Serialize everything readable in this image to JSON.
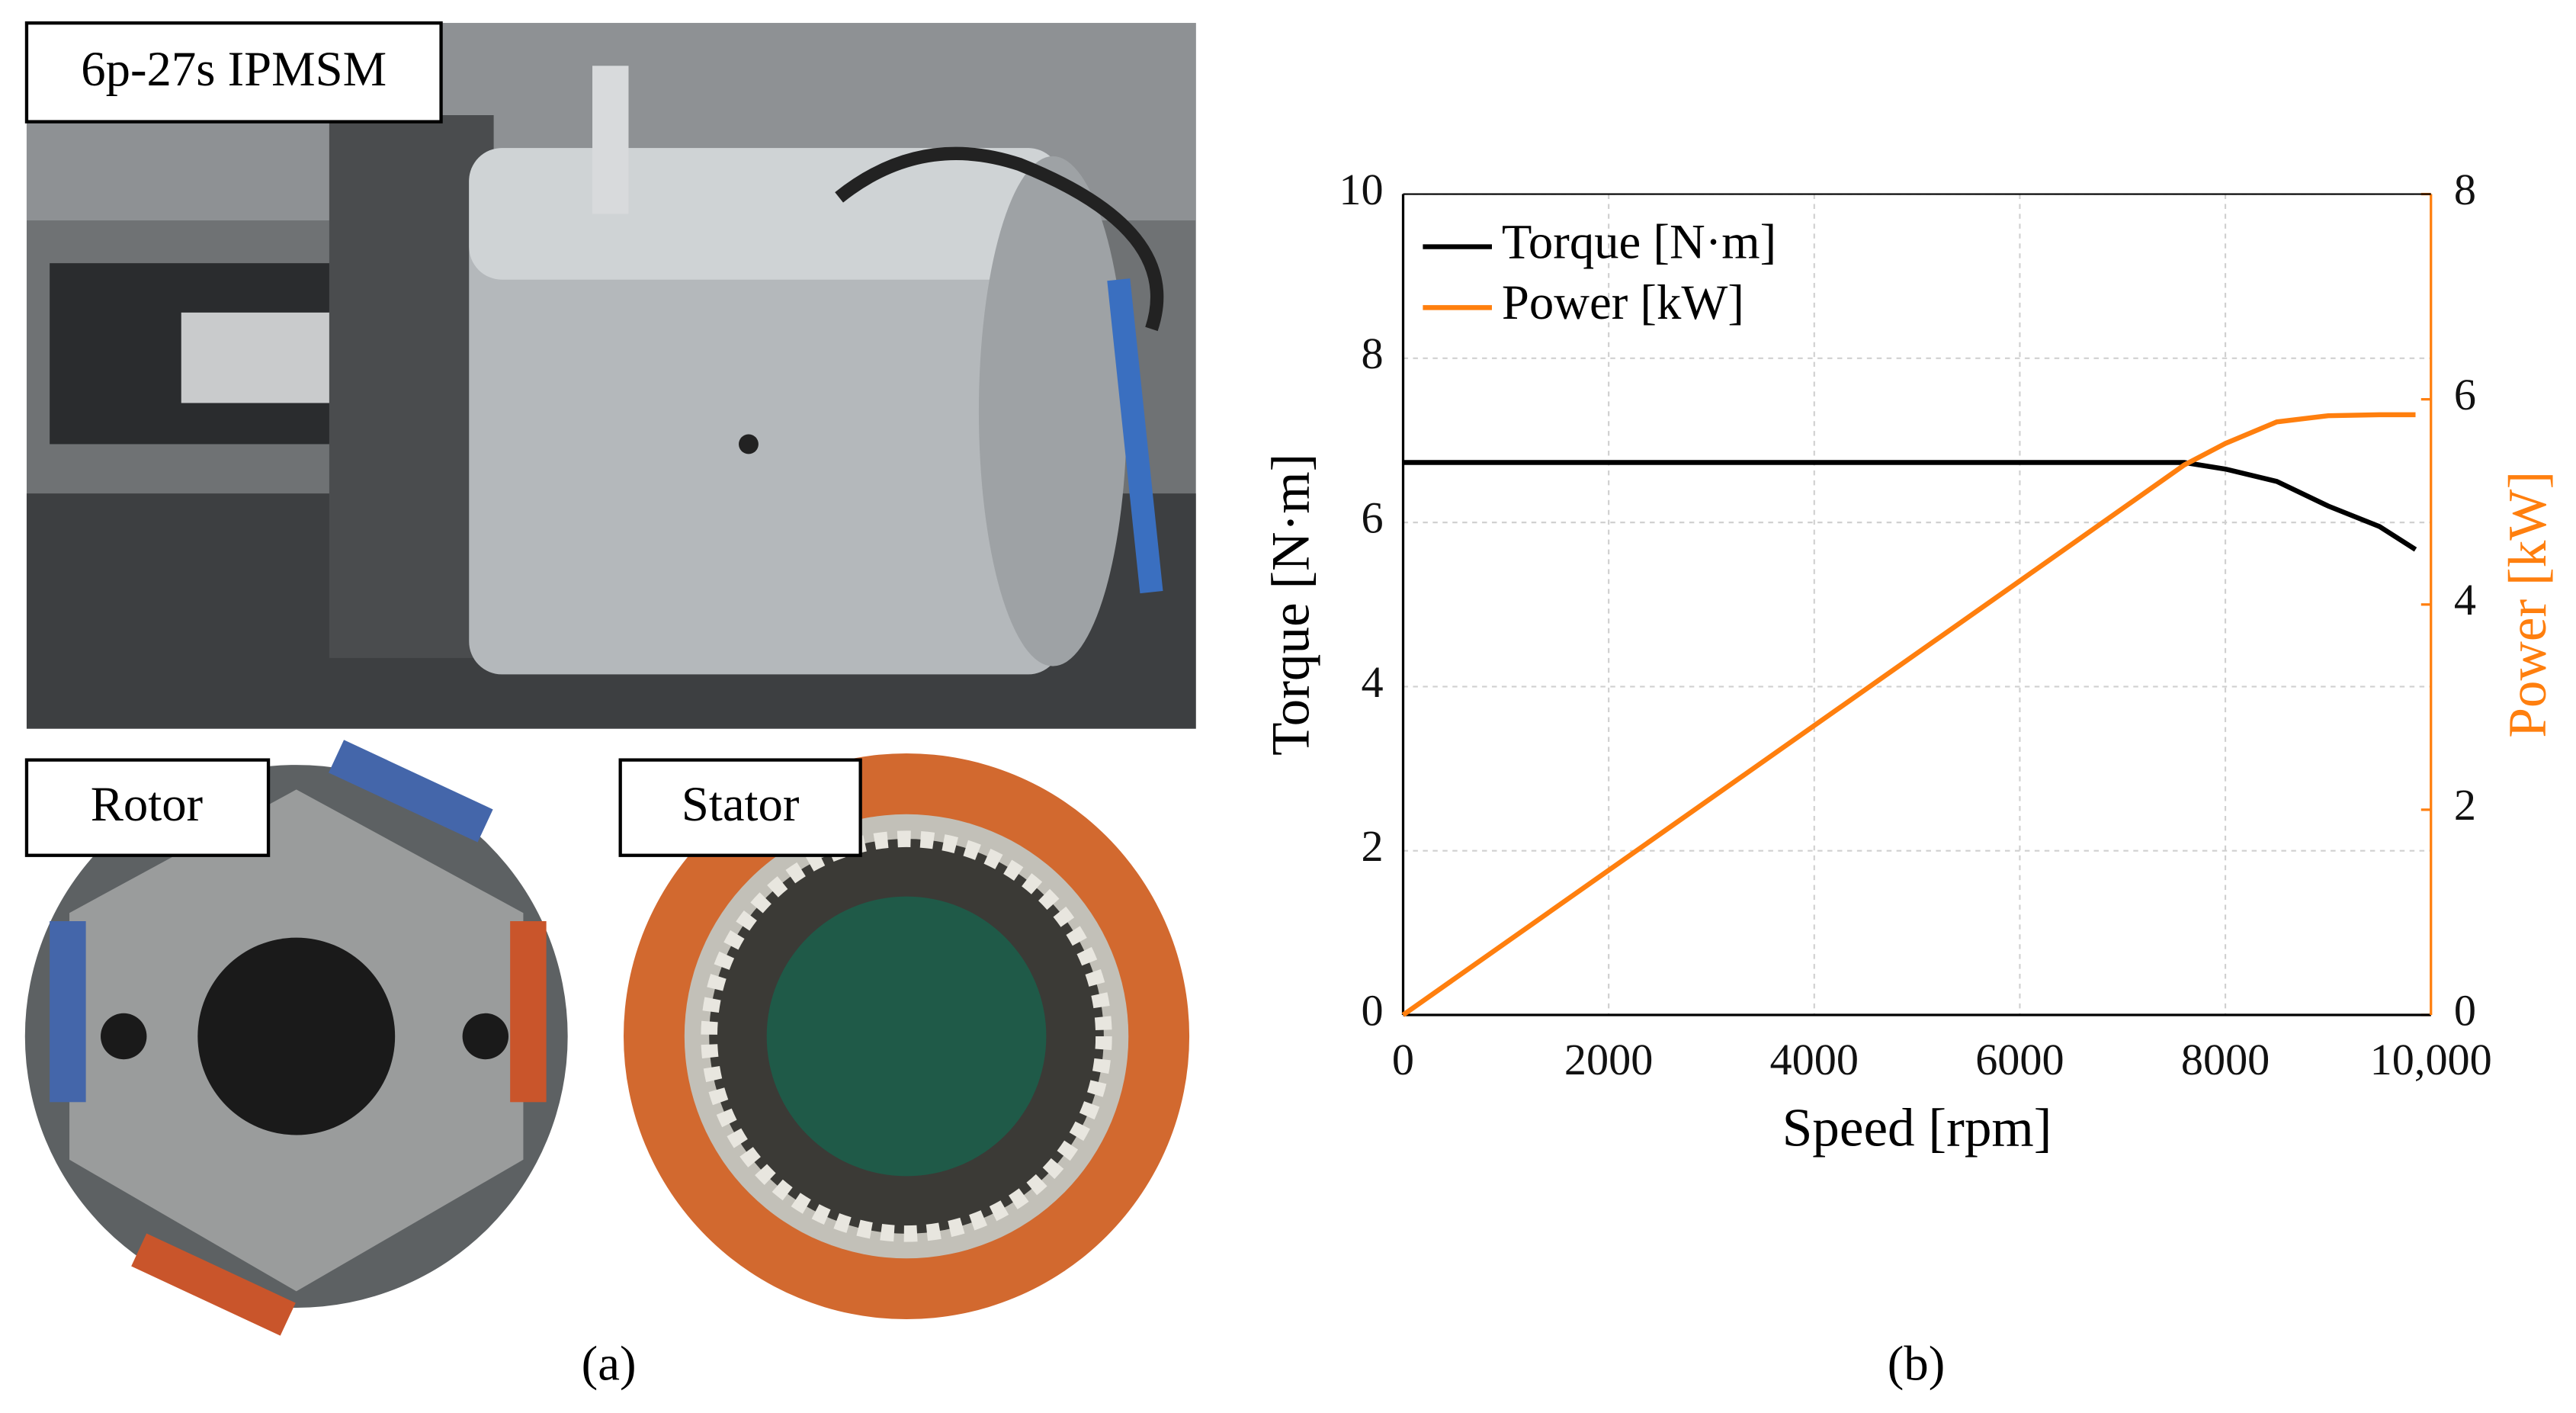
{
  "photo": {
    "main_label": "6p-27s IPMSM",
    "rotor_label": "Rotor",
    "stator_label": "Stator",
    "caption": "(a)"
  },
  "chart_data": {
    "type": "line",
    "caption": "(b)",
    "x_label": "Speed [rpm]",
    "y_label": "Torque [N·m]",
    "y2_label": "Power [kW]",
    "x": [
      0,
      2000,
      4000,
      6000,
      7600,
      8000,
      8500,
      9000,
      9500,
      9850
    ],
    "series": [
      {
        "name": "Torque [N·m]",
        "color": "#000000",
        "values": [
          6.73,
          6.73,
          6.73,
          6.73,
          6.73,
          6.65,
          6.5,
          6.2,
          5.95,
          5.67
        ]
      },
      {
        "name": "Power [kW]",
        "color": "#ff7f0e",
        "axis": "y2",
        "values": [
          0,
          1.41,
          2.82,
          4.23,
          5.36,
          5.57,
          5.78,
          5.84,
          5.85,
          5.85
        ]
      }
    ],
    "xlim": [
      0,
      10000
    ],
    "xticks": [
      0,
      2000,
      4000,
      6000,
      8000,
      {
        "value": 10000,
        "label": "10,000"
      }
    ],
    "ylim": [
      0,
      10
    ],
    "yticks": [
      0,
      2,
      4,
      6,
      8,
      10
    ],
    "y2lim": [
      0,
      8
    ],
    "y2ticks": [
      0,
      2,
      4,
      6,
      8
    ],
    "y2_color": "#ff7f0e",
    "grid": true,
    "legend": "upper left"
  }
}
